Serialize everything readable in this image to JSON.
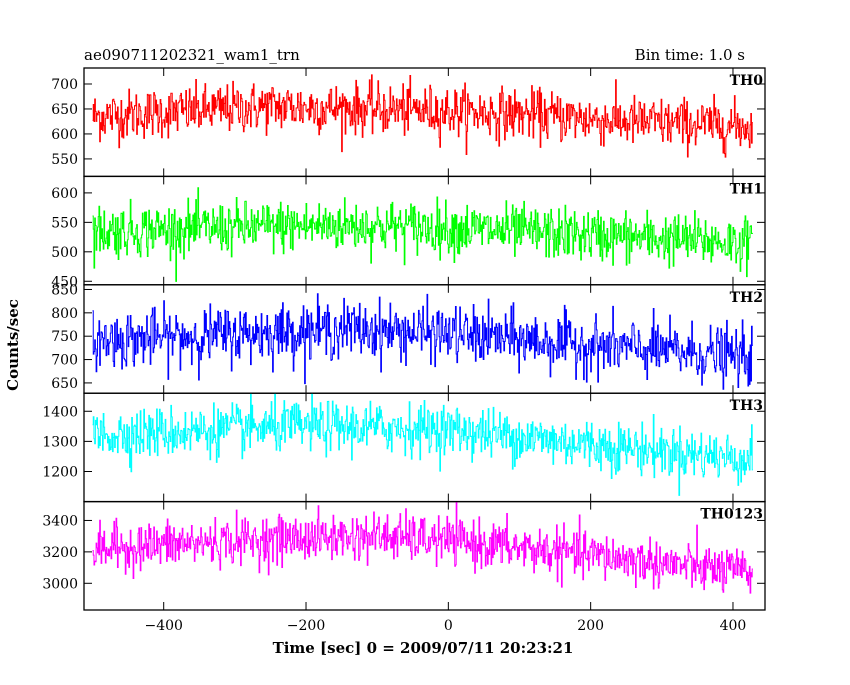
{
  "chart_data": {
    "type": "line",
    "title_left": "ae090711202321_wam1_trn",
    "title_right": "Bin time: 1.0 s",
    "xlabel": "Time [sec] 0 = 2009/07/11 20:23:21",
    "ylabel": "Counts/sec",
    "xlim": [
      -512,
      445
    ],
    "x_range": [
      -500,
      427
    ],
    "x_ticks": [
      -400,
      -200,
      0,
      200,
      400
    ],
    "x_tick_labels": [
      "−400",
      "−200",
      "0",
      "200",
      "400"
    ],
    "grid": false,
    "series": [
      {
        "name": "TH0",
        "color": "#ff0000",
        "ylim": [
          515,
          732
        ],
        "y_ticks": [
          550,
          600,
          650,
          700
        ],
        "y_tick_labels": [
          "550",
          "600",
          "650",
          "700"
        ],
        "trend": [
          [
            -500,
            635
          ],
          [
            -250,
            655
          ],
          [
            -100,
            650
          ],
          [
            100,
            640
          ],
          [
            250,
            625
          ],
          [
            427,
            615
          ]
        ],
        "spread": 25
      },
      {
        "name": "TH1",
        "color": "#00ff00",
        "ylim": [
          444,
          628
        ],
        "y_ticks": [
          450,
          500,
          550,
          600
        ],
        "y_tick_labels": [
          "450",
          "500",
          "550",
          "600"
        ],
        "trend": [
          [
            -500,
            535
          ],
          [
            -150,
            545
          ],
          [
            0,
            540
          ],
          [
            200,
            528
          ],
          [
            427,
            515
          ]
        ],
        "spread": 22
      },
      {
        "name": "TH2",
        "color": "#0000ff",
        "ylim": [
          628,
          860
        ],
        "y_ticks": [
          650,
          700,
          750,
          800,
          850
        ],
        "y_tick_labels": [
          "650",
          "700",
          "750",
          "800",
          "850"
        ],
        "trend": [
          [
            -500,
            740
          ],
          [
            -150,
            765
          ],
          [
            0,
            755
          ],
          [
            200,
            730
          ],
          [
            427,
            705
          ]
        ],
        "spread": 30
      },
      {
        "name": "TH3",
        "color": "#00ffff",
        "ylim": [
          1100,
          1460
        ],
        "y_ticks": [
          1200,
          1300,
          1400
        ],
        "y_tick_labels": [
          "1200",
          "1300",
          "1400"
        ],
        "trend": [
          [
            -500,
            1320
          ],
          [
            -200,
            1350
          ],
          [
            0,
            1340
          ],
          [
            200,
            1290
          ],
          [
            427,
            1240
          ]
        ],
        "spread": 42
      },
      {
        "name": "TH0123",
        "color": "#ff00ff",
        "ylim": [
          2830,
          3520
        ],
        "y_ticks": [
          3000,
          3200,
          3400
        ],
        "y_tick_labels": [
          "3000",
          "3200",
          "3400"
        ],
        "trend": [
          [
            -500,
            3220
          ],
          [
            -250,
            3280
          ],
          [
            -100,
            3300
          ],
          [
            0,
            3270
          ],
          [
            200,
            3180
          ],
          [
            427,
            3060
          ]
        ],
        "spread": 75
      }
    ]
  }
}
